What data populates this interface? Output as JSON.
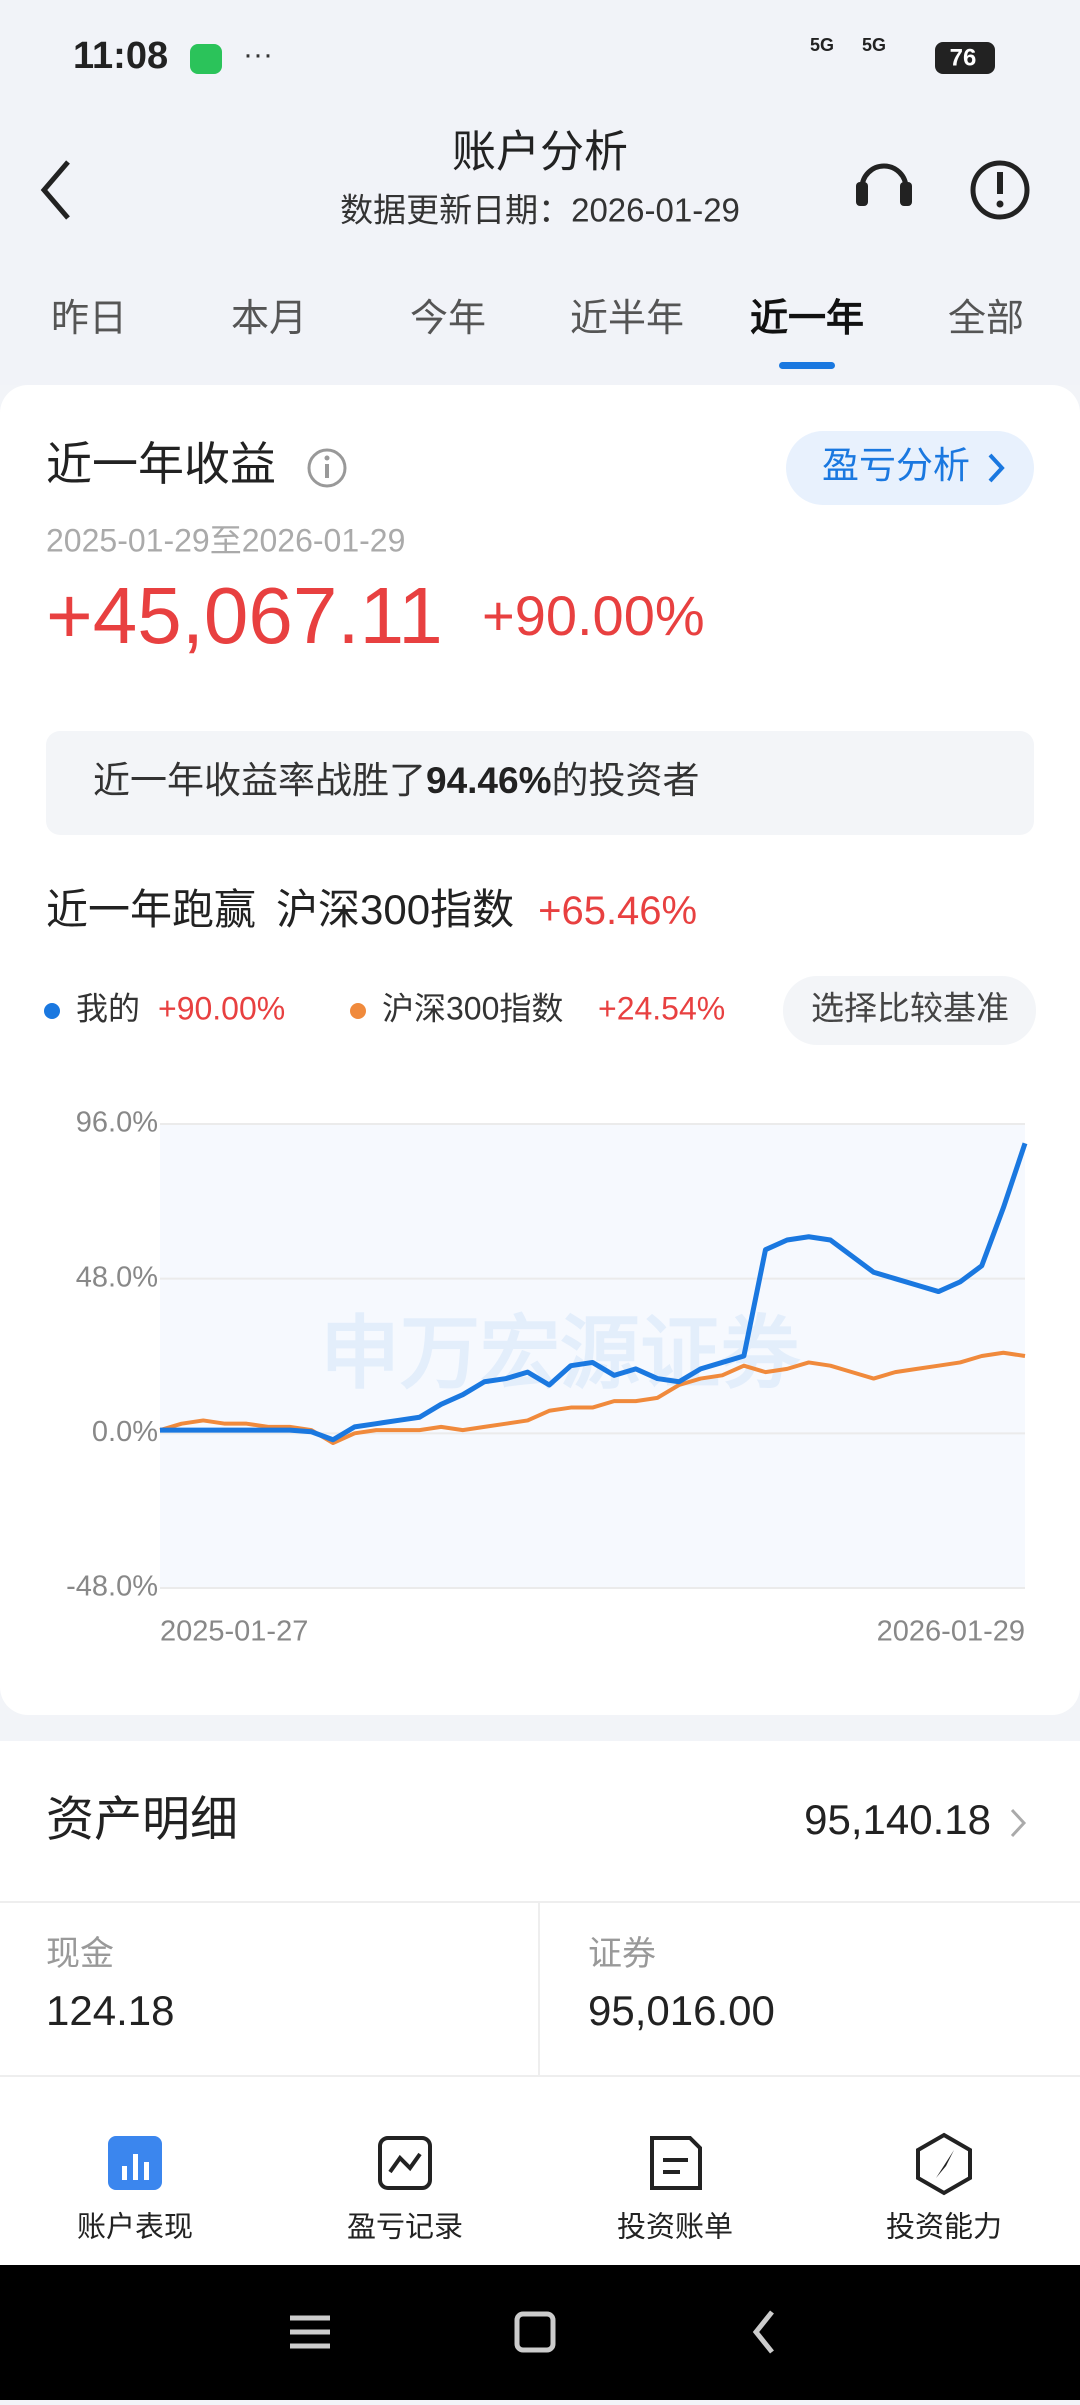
{
  "status_bar": {
    "time": "11:08",
    "signal_1": "5G",
    "signal_2": "5G",
    "battery": "76"
  },
  "header": {
    "title": "账户分析",
    "subtitle": "数据更新日期：2026-01-29"
  },
  "tabs": [
    "昨日",
    "本月",
    "今年",
    "近半年",
    "近一年",
    "全部"
  ],
  "summary": {
    "title": "近一年收益",
    "button": "盈亏分析",
    "date_range": "2025-01-29至2026-01-29",
    "profit": "+45,067.11",
    "rate": "+90.00%",
    "banner_prefix": "近一年收益率战胜了",
    "banner_value": "94.46%",
    "banner_suffix": "的投资者"
  },
  "comparison": {
    "label": "近一年跑赢",
    "benchmark": "沪深300指数",
    "value": "+65.46%",
    "button": "选择比较基准",
    "legend_values": [
      "+90.00%",
      "+24.54%"
    ]
  },
  "chart_data": {
    "type": "line",
    "watermark": "申万宏源证券",
    "x": [
      0,
      1,
      2,
      3,
      4,
      5,
      6,
      7,
      8,
      9,
      10,
      11,
      12,
      13,
      14,
      15,
      16,
      17,
      18,
      19,
      20,
      21,
      22,
      23,
      24,
      25,
      26,
      27,
      28,
      29,
      30,
      31,
      32,
      33,
      34,
      35,
      36,
      37,
      38,
      39,
      40
    ],
    "xlim": [
      0,
      40
    ],
    "xticks": [
      {
        "value": 0,
        "label": "2025-01-27"
      },
      {
        "value": 40,
        "label": "2026-01-29"
      }
    ],
    "ylim": [
      -48,
      96
    ],
    "yticks": [
      {
        "value": -48,
        "label": "-48.0%"
      },
      {
        "value": 0,
        "label": "0.0%"
      },
      {
        "value": 48,
        "label": "48.0%"
      },
      {
        "value": 96,
        "label": "96.0%"
      }
    ],
    "grid": true,
    "series": [
      {
        "name": "我的",
        "color": "#1a78e0",
        "values": [
          1,
          1,
          1,
          1,
          1,
          1,
          1,
          0.5,
          -2,
          2,
          3,
          4,
          5,
          9,
          12,
          16,
          17,
          19,
          15,
          21,
          22,
          18,
          20,
          17,
          16,
          20,
          22,
          24,
          57,
          60,
          61,
          60,
          55,
          50,
          48,
          46,
          44,
          47,
          52,
          70,
          90
        ]
      },
      {
        "name": "沪深300指数",
        "color": "#f08a3c",
        "values": [
          1,
          3,
          4,
          3,
          3,
          2,
          2,
          1,
          -3,
          0,
          1,
          1,
          1,
          2,
          1,
          2,
          3,
          4,
          7,
          8,
          8,
          10,
          10,
          11,
          15,
          17,
          18,
          21,
          19,
          20,
          22,
          21,
          19,
          17,
          19,
          20,
          21,
          22,
          24,
          25,
          24
        ]
      }
    ]
  },
  "assets": {
    "title": "资产明细",
    "total": "95,140.18",
    "items": [
      {
        "label": "现金",
        "value": "124.18"
      },
      {
        "label": "证券",
        "value": "95,016.00"
      }
    ]
  },
  "nav": [
    "账户表现",
    "盈亏记录",
    "投资账单",
    "投资能力"
  ]
}
